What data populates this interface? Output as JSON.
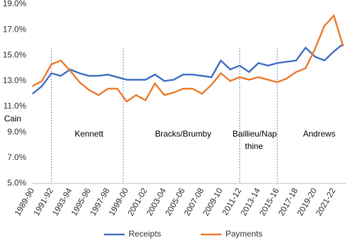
{
  "chart_data": {
    "type": "line",
    "categories": [
      "1989-90",
      null,
      "1991-92",
      null,
      "1993-94",
      null,
      "1995-96",
      null,
      "1997-98",
      null,
      "1999-00",
      null,
      "2001-02",
      null,
      "2003-04",
      null,
      "2005-06",
      null,
      "2007-08",
      null,
      "2009-10",
      null,
      "2011-12",
      null,
      "2013-14",
      null,
      "2015-16",
      null,
      "2017-18",
      null,
      "2019-20",
      null,
      "2021-22",
      null
    ],
    "series": [
      {
        "name": "Receipts",
        "color": "#4472c4",
        "values": [
          12.0,
          12.6,
          13.6,
          13.4,
          13.9,
          13.6,
          13.4,
          13.4,
          13.5,
          13.3,
          13.1,
          13.1,
          13.1,
          13.5,
          13.0,
          13.1,
          13.5,
          13.5,
          13.4,
          13.3,
          14.6,
          13.9,
          14.2,
          13.7,
          14.4,
          14.2,
          14.4,
          14.5,
          14.6,
          15.6,
          14.9,
          14.6,
          15.3,
          15.9
        ]
      },
      {
        "name": "Payments",
        "color": "#ed7d31",
        "values": [
          12.6,
          13.0,
          14.3,
          14.6,
          13.8,
          12.9,
          12.3,
          11.9,
          12.4,
          12.4,
          11.4,
          11.9,
          11.5,
          12.8,
          11.9,
          12.1,
          12.4,
          12.4,
          12.0,
          12.7,
          13.6,
          13.0,
          13.3,
          13.1,
          13.3,
          13.1,
          12.9,
          13.2,
          13.7,
          14.0,
          15.5,
          17.3,
          18.1,
          15.7
        ]
      }
    ],
    "ylim": [
      5,
      19
    ],
    "yticks": [
      {
        "value": 5,
        "label": "5.0%"
      },
      {
        "value": 7,
        "label": "7.0%"
      },
      {
        "value": 9,
        "label": "9.0%"
      },
      {
        "value": 11,
        "label": "11.0%"
      },
      {
        "value": 13,
        "label": "13.0%"
      },
      {
        "value": 15,
        "label": "15.0%"
      },
      {
        "value": 17,
        "label": "17.0%"
      },
      {
        "value": 19,
        "label": "19.0%"
      }
    ],
    "annotations": [
      "Cain",
      "Kennett",
      "Bracks/Brumby",
      "Baillieu/Nap",
      "thine",
      "Andrews"
    ],
    "legend": "bottom"
  }
}
